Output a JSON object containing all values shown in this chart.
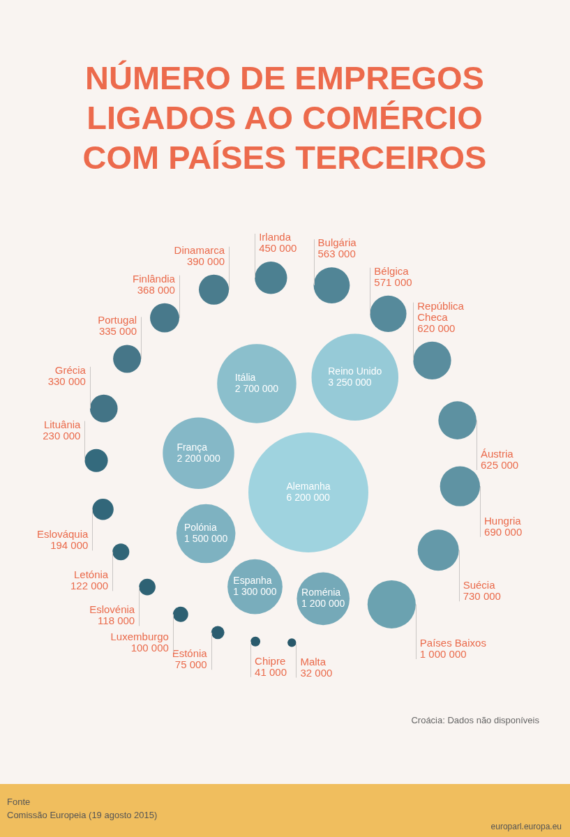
{
  "chart_data": {
    "type": "other",
    "title": "NÚMERO DE EMPREGOS LIGADOS AO COMÉRCIO COM PAÍSES TERCEIROS",
    "categories": [
      "Alemanha",
      "Reino Unido",
      "Itália",
      "França",
      "Polónia",
      "Espanha",
      "Roménia",
      "Países Baixos",
      "Suécia",
      "Hungria",
      "Áustria",
      "República Checa",
      "Bélgica",
      "Bulgária",
      "Irlanda",
      "Dinamarca",
      "Finlândia",
      "Portugal",
      "Grécia",
      "Lituânia",
      "Eslováquia",
      "Letónia",
      "Eslovénia",
      "Luxemburgo",
      "Estónia",
      "Chipre",
      "Malta"
    ],
    "values": [
      6200000,
      3250000,
      2700000,
      2200000,
      1500000,
      1300000,
      1200000,
      1000000,
      730000,
      690000,
      625000,
      620000,
      571000,
      563000,
      450000,
      390000,
      368000,
      335000,
      330000,
      230000,
      194000,
      122000,
      118000,
      100000,
      75000,
      41000,
      32000
    ],
    "colors": [
      "#9fd3df",
      "#96cad7",
      "#8bbfcc",
      "#85b8c7",
      "#7eb2c1",
      "#79adbc",
      "#75a9b8",
      "#6ba2b0",
      "#6499a9",
      "#5f93a3",
      "#5d91a1",
      "#5a8d9e",
      "#568a9b",
      "#518596",
      "#4c8091",
      "#4a7c8d",
      "#48798b",
      "#467688",
      "#437486",
      "#346a7d",
      "#32677a",
      "#306577",
      "#2e6274",
      "#2d6072",
      "#2b5d70",
      "#2a5b6d",
      "#28586a"
    ],
    "data_labels": true,
    "annotations": [
      "Croácia: Dados não disponíveis",
      "Fonte",
      "Comissão Europeia (19 agosto 2015)",
      "europarl.europa.eu"
    ]
  }
}
